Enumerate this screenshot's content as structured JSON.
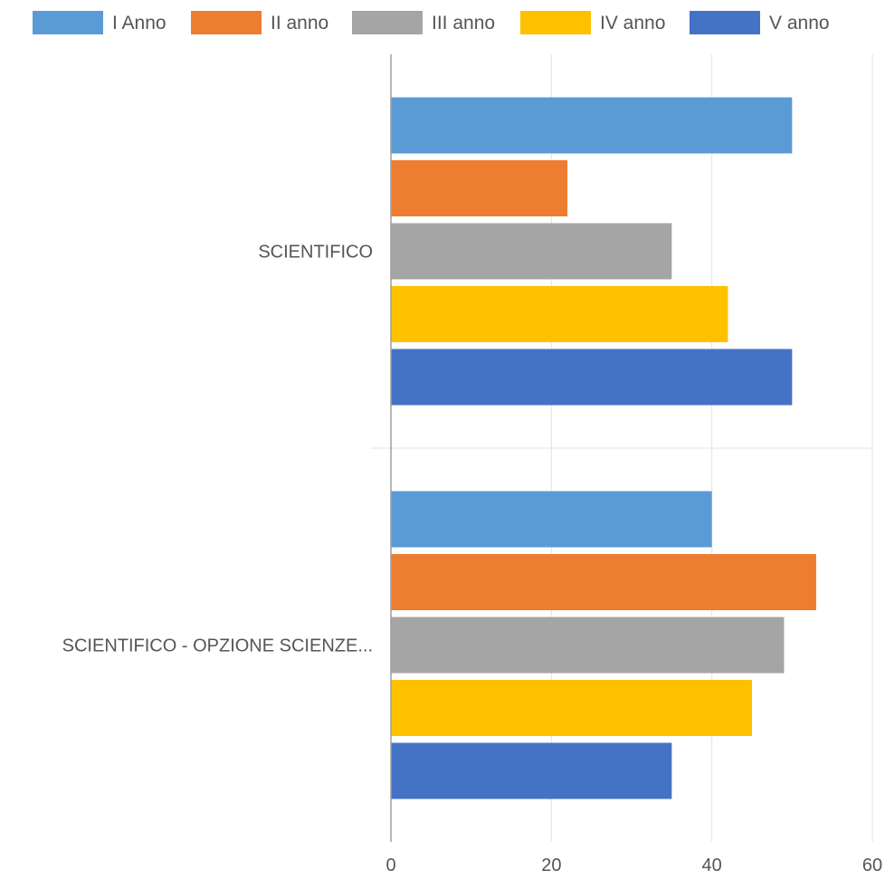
{
  "chart_data": {
    "type": "bar",
    "orientation": "horizontal",
    "categories": [
      "SCIENTIFICO",
      "SCIENTIFICO -  OPZIONE SCIENZE..."
    ],
    "series": [
      {
        "name": "I Anno",
        "color": "#5B9BD5",
        "values": [
          50,
          40
        ]
      },
      {
        "name": "II anno",
        "color": "#ED7D31",
        "values": [
          22,
          53
        ]
      },
      {
        "name": "III anno",
        "color": "#A5A5A5",
        "values": [
          35,
          49
        ]
      },
      {
        "name": "IV anno",
        "color": "#FFC000",
        "values": [
          42,
          45
        ]
      },
      {
        "name": "V anno",
        "color": "#4472C4",
        "values": [
          50,
          35
        ]
      }
    ],
    "xlim": [
      0,
      60
    ],
    "xticks": [
      "0",
      "20",
      "40",
      "60"
    ],
    "xtick_values": [
      0,
      20,
      40,
      60
    ],
    "grid": true,
    "legend_position": "top"
  }
}
